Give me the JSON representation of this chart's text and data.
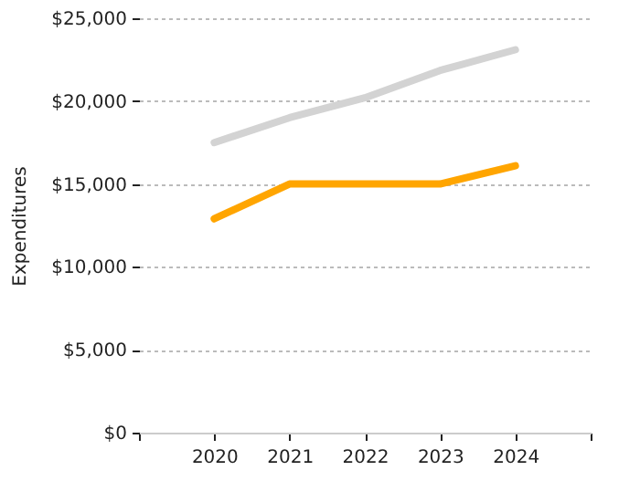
{
  "chart_data": {
    "type": "line",
    "ylabel": "Expenditures",
    "x": [
      2020,
      2021,
      2022,
      2023,
      2024
    ],
    "series": [
      {
        "color": "#d3d3d3",
        "values": [
          17500,
          19000,
          20200,
          21850,
          23100
        ]
      },
      {
        "color": "#ffa500",
        "values": [
          12900,
          15000,
          15000,
          15000,
          16100
        ]
      }
    ],
    "xlim": [
      2019,
      2025
    ],
    "xticks": [
      {
        "value": 2019,
        "label": null
      },
      2020,
      2021,
      2022,
      2023,
      2024,
      {
        "value": 2025,
        "label": null
      }
    ],
    "ylim": [
      0,
      25000
    ],
    "yticks": [
      {
        "value": 0,
        "label": "$0"
      },
      {
        "value": 5000,
        "label": "$5,000"
      },
      {
        "value": 10000,
        "label": "$10,000"
      },
      {
        "value": 15000,
        "label": "$15,000"
      },
      {
        "value": 20000,
        "label": "$20,000"
      },
      {
        "value": 25000,
        "label": "$25,000"
      }
    ],
    "grid": "y",
    "legend": false,
    "marker": "none",
    "line_style": "solid"
  }
}
